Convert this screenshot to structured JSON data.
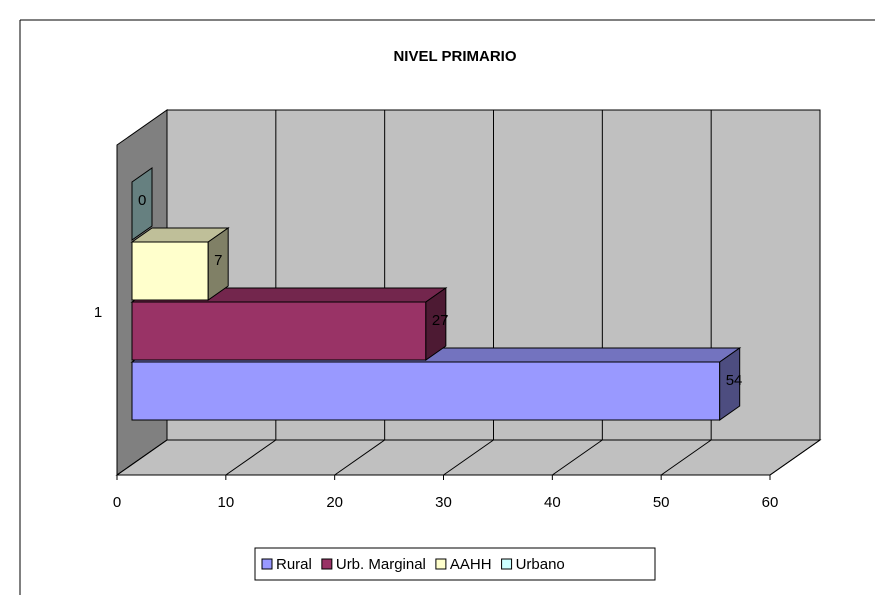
{
  "chart_data": {
    "type": "bar3d",
    "orientation": "horizontal",
    "title": "NIVEL PRIMARIO",
    "categories": [
      "1"
    ],
    "series": [
      {
        "name": "Rural",
        "color": "#9999ff",
        "values": [
          54
        ]
      },
      {
        "name": "Urb. Marginal",
        "color": "#993366",
        "values": [
          27
        ]
      },
      {
        "name": "AAHH",
        "color": "#ffffcc",
        "values": [
          7
        ]
      },
      {
        "name": "Urbano",
        "color": "#ccffff",
        "values": [
          0
        ]
      }
    ],
    "xlim": [
      0,
      60
    ],
    "xticks": [
      0,
      10,
      20,
      30,
      40,
      50,
      60
    ],
    "grid": true,
    "legend": "bottom"
  }
}
